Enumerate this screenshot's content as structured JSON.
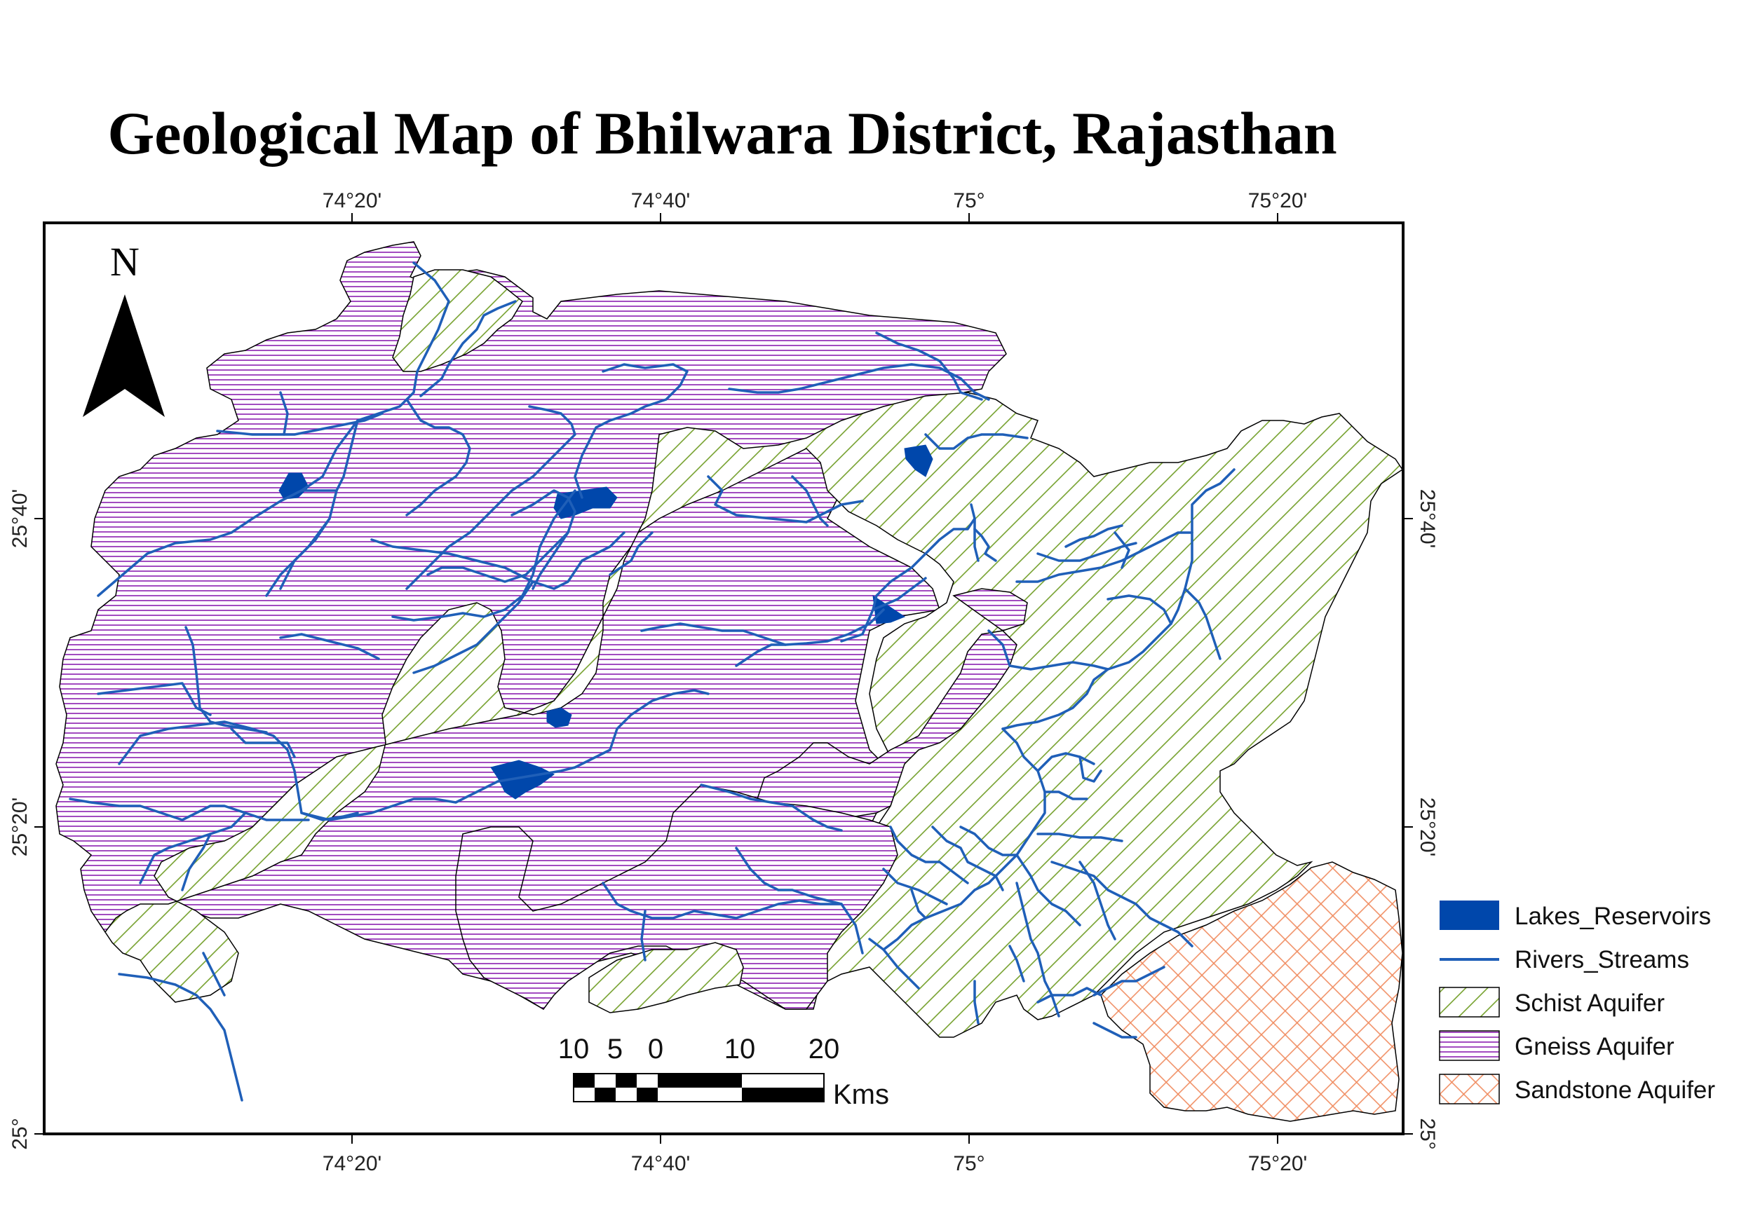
{
  "title": "Geological Map of Bhilwara District, Rajasthan",
  "north_label": "N",
  "graticule": {
    "longitude_labels": [
      "74°20'",
      "74°40'",
      "75°",
      "75°20'"
    ],
    "latitude_labels": [
      "25°40'",
      "25°20'",
      "25°"
    ]
  },
  "scale_bar": {
    "labels": [
      "10",
      "5",
      "0",
      "10",
      "20"
    ],
    "unit": "Kms"
  },
  "legend": [
    {
      "label": "Lakes_Reservoirs",
      "symbol": "fill",
      "color": "#0047AB"
    },
    {
      "label": "Rivers_Streams",
      "symbol": "line",
      "color": "#1F5FB8"
    },
    {
      "label": "Schist Aquifer",
      "symbol": "diagonal-hatch",
      "color": "#6B9A1E"
    },
    {
      "label": "Gneiss Aquifer",
      "symbol": "horizontal-hatch",
      "color": "#8A1FB0"
    },
    {
      "label": "Sandstone Aquifer",
      "symbol": "cross-hatch",
      "color": "#F08A5D"
    }
  ]
}
